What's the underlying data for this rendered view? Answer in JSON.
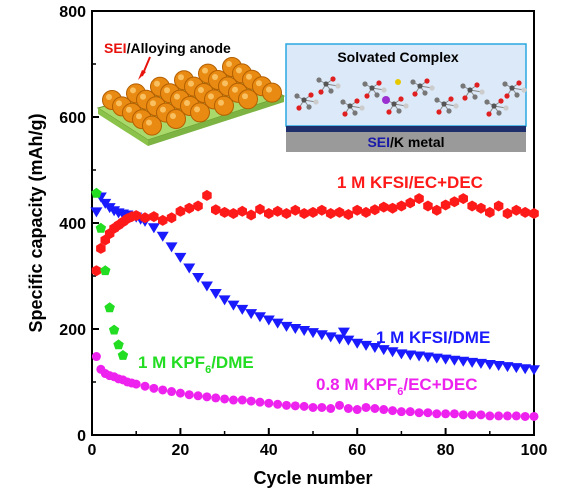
{
  "chart_data": {
    "type": "scatter",
    "xlabel": "Cycle number",
    "ylabel": "Specific capacity (mAh/g)",
    "xlim": [
      0,
      100
    ],
    "ylim": [
      0,
      800
    ],
    "x_ticks": [
      "0",
      "20",
      "40",
      "60",
      "80",
      "100"
    ],
    "y_ticks": [
      "0",
      "200",
      "400",
      "600",
      "800"
    ],
    "grid": false,
    "colors": {
      "kfsi_ec_dec": "#ff1a1a",
      "kfsi_dme": "#1a1aff",
      "kpf6_dme": "#22dd22",
      "kpf6_ec_dec": "#ee22ee"
    },
    "series_labels": {
      "kfsi_ec_dec": "1 M KFSI/EC+DEC",
      "kfsi_dme": "1 M KFSI/DME",
      "kpf6_dme_pre": "1 M KPF",
      "kpf6_dme_sub": "6",
      "kpf6_dme_post": "/DME",
      "kpf6_ec_dec_pre": "0.8 M KPF",
      "kpf6_ec_dec_sub": "6",
      "kpf6_ec_dec_post": "/EC+DEC"
    },
    "series": [
      {
        "key": "kfsi_ec_dec",
        "marker": "hexagon",
        "x": [
          1,
          2,
          3,
          4,
          5,
          6,
          7,
          8,
          9,
          10,
          12,
          14,
          16,
          18,
          20,
          22,
          24,
          26,
          28,
          30,
          32,
          34,
          36,
          38,
          40,
          42,
          44,
          46,
          48,
          50,
          52,
          54,
          56,
          58,
          60,
          62,
          64,
          66,
          68,
          70,
          72,
          74,
          76,
          78,
          80,
          82,
          84,
          86,
          88,
          90,
          92,
          94,
          96,
          98,
          100
        ],
        "values": [
          310,
          352,
          368,
          380,
          390,
          396,
          402,
          408,
          412,
          414,
          410,
          412,
          405,
          410,
          422,
          428,
          432,
          452,
          425,
          420,
          418,
          422,
          415,
          426,
          418,
          422,
          418,
          424,
          418,
          420,
          424,
          418,
          420,
          416,
          424,
          420,
          425,
          430,
          428,
          432,
          438,
          446,
          432,
          424,
          434,
          440,
          446,
          432,
          428,
          420,
          432,
          418,
          424,
          420,
          418
        ]
      },
      {
        "key": "kfsi_dme",
        "marker": "triangle-down",
        "x": [
          1,
          2,
          3,
          4,
          5,
          6,
          7,
          8,
          9,
          10,
          11,
          12,
          14,
          16,
          18,
          20,
          22,
          24,
          26,
          28,
          30,
          32,
          34,
          36,
          38,
          40,
          42,
          44,
          46,
          48,
          50,
          52,
          54,
          56,
          57,
          58,
          60,
          62,
          64,
          66,
          68,
          70,
          72,
          74,
          76,
          78,
          80,
          82,
          84,
          86,
          88,
          90,
          92,
          94,
          96,
          98,
          100
        ],
        "values": [
          422,
          450,
          438,
          430,
          424,
          420,
          418,
          416,
          414,
          412,
          408,
          404,
          392,
          376,
          356,
          336,
          316,
          298,
          282,
          268,
          256,
          246,
          238,
          230,
          224,
          218,
          212,
          206,
          202,
          198,
          194,
          190,
          186,
          182,
          195,
          180,
          174,
          170,
          166,
          162,
          158,
          154,
          152,
          150,
          148,
          146,
          144,
          142,
          140,
          138,
          136,
          134,
          132,
          130,
          128,
          126,
          124
        ]
      },
      {
        "key": "kpf6_dme",
        "marker": "pentagon",
        "x": [
          1,
          2,
          3,
          4,
          5,
          6,
          7
        ],
        "values": [
          456,
          390,
          310,
          240,
          198,
          170,
          150
        ]
      },
      {
        "key": "kpf6_ec_dec",
        "marker": "circle",
        "x": [
          1,
          2,
          3,
          4,
          5,
          6,
          7,
          8,
          9,
          10,
          12,
          14,
          16,
          18,
          20,
          22,
          24,
          26,
          28,
          30,
          32,
          34,
          36,
          38,
          40,
          42,
          44,
          46,
          48,
          50,
          52,
          54,
          56,
          58,
          60,
          62,
          64,
          66,
          68,
          70,
          72,
          74,
          76,
          78,
          80,
          82,
          84,
          86,
          88,
          90,
          92,
          94,
          96,
          98,
          100
        ],
        "values": [
          148,
          124,
          116,
          112,
          110,
          106,
          104,
          100,
          98,
          96,
          92,
          88,
          85,
          82,
          79,
          76,
          74,
          72,
          70,
          68,
          66,
          66,
          64,
          62,
          60,
          58,
          56,
          55,
          54,
          52,
          52,
          50,
          56,
          50,
          48,
          52,
          50,
          48,
          46,
          44,
          44,
          42,
          42,
          40,
          40,
          40,
          38,
          38,
          38,
          36,
          36,
          36,
          36,
          35,
          35
        ]
      }
    ]
  },
  "inset_left": {
    "label_red": "SEI",
    "label_black": "/Alloying anode"
  },
  "inset_right": {
    "title": "Solvated Complex",
    "bottom_label_blue": "SEI",
    "bottom_label_black": "/K metal"
  }
}
